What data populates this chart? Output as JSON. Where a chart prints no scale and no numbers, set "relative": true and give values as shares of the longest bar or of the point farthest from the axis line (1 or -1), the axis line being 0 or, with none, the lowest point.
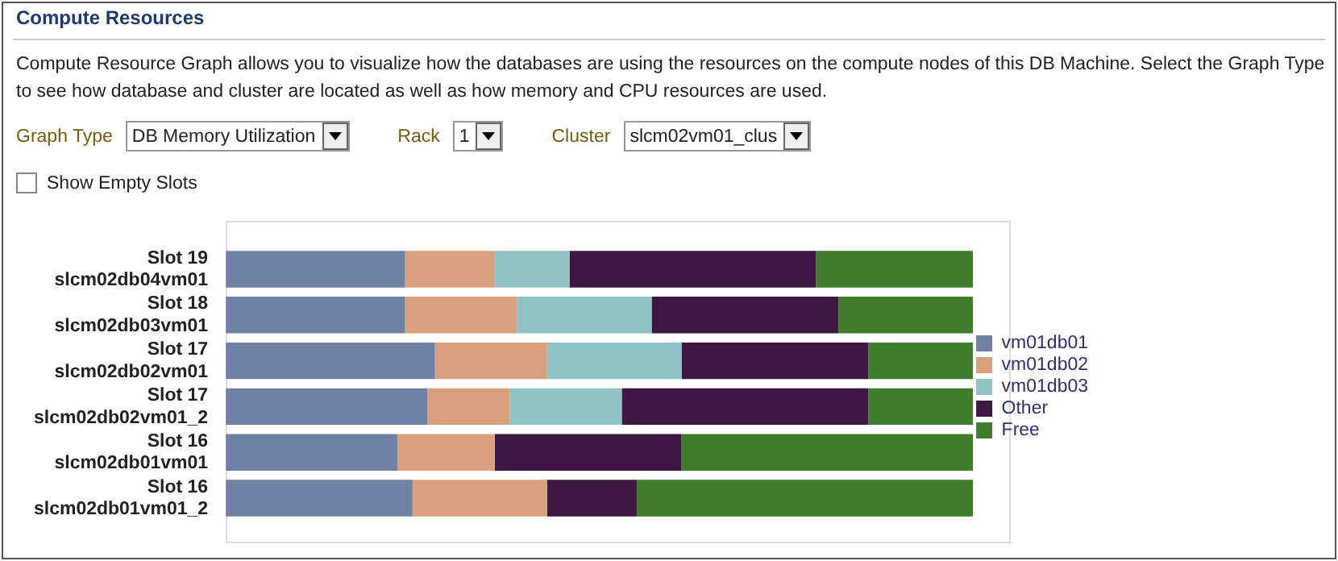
{
  "chart_data": {
    "type": "bar",
    "orientation": "horizontal",
    "stacked": true,
    "relative": true,
    "legend": "right",
    "title": "Compute Resources",
    "subtitle": "Compute Resource Graph allows you to visualize how the databases are using the resources on the compute nodes of this DB Machine. Select the Graph Type to see how database and cluster are located as well as how memory and CPU resources are used.",
    "annotations": [
      "Graph Type",
      "DB Memory Utilization",
      "Rack",
      "1",
      "Cluster",
      "slcm02vm01_clus",
      "Show Empty Slots"
    ],
    "categories": [
      "Slot 19\nslcm02db04vm01",
      "Slot 18\nslcm02db03vm01",
      "Slot 17\nslcm02db02vm01",
      "Slot 17\nslcm02db02vm01_2",
      "Slot 16\nslcm02db01vm01",
      "Slot 16\nslcm02db01vm01_2"
    ],
    "series": [
      {
        "name": "vm01db01",
        "color": "#6f82a6",
        "values": [
          0.24,
          0.24,
          0.28,
          0.27,
          0.23,
          0.25
        ]
      },
      {
        "name": "vm01db02",
        "color": "#d8a07c",
        "values": [
          0.12,
          0.15,
          0.15,
          0.11,
          0.13,
          0.18
        ]
      },
      {
        "name": "vm01db03",
        "color": "#90c3c3",
        "values": [
          0.1,
          0.18,
          0.18,
          0.15,
          0,
          0
        ]
      },
      {
        "name": "Other",
        "color": "#3c1842",
        "values": [
          0.33,
          0.25,
          0.25,
          0.33,
          0.25,
          0.12
        ]
      },
      {
        "name": "Free",
        "color": "#3f7d2c",
        "values": [
          0.21,
          0.18,
          0.14,
          0.14,
          0.39,
          0.45
        ]
      }
    ]
  }
}
